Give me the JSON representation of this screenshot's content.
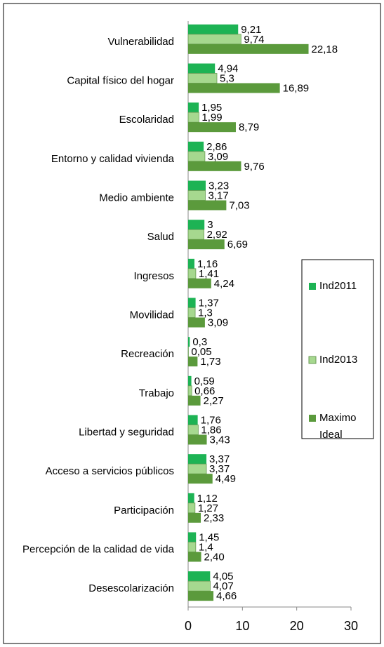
{
  "chart_data": {
    "type": "bar",
    "orientation": "horizontal",
    "categories": [
      "Vulnerabilidad",
      "Capital físico del hogar",
      "Escolaridad",
      "Entorno y calidad vivienda",
      "Medio ambiente",
      "Salud",
      "Ingresos",
      "Movilidad",
      "Recreación",
      "Trabajo",
      "Libertad y seguridad",
      "Acceso a servicios públicos",
      "Participación",
      "Percepción de la calidad de vida",
      "Desescolarización"
    ],
    "series": [
      {
        "name": "Ind2011",
        "color": "#1db354",
        "values": [
          9.21,
          4.94,
          1.95,
          2.86,
          3.23,
          3,
          1.16,
          1.37,
          0.3,
          0.59,
          1.76,
          3.37,
          1.12,
          1.45,
          4.05
        ],
        "value_labels": [
          "9,21",
          "4,94",
          "1,95",
          "2,86",
          "3,23",
          "3",
          "1,16",
          "1,37",
          "0,3",
          "0,59",
          "1,76",
          "3,37",
          "1,12",
          "1,45",
          "4,05"
        ]
      },
      {
        "name": "Ind2013",
        "color": "#a6d88f",
        "values": [
          9.74,
          5.3,
          1.99,
          3.09,
          3.17,
          2.92,
          1.41,
          1.3,
          0.05,
          0.66,
          1.86,
          3.37,
          1.27,
          1.4,
          4.07
        ],
        "value_labels": [
          "9,74",
          "5,3",
          "1,99",
          "3,09",
          "3,17",
          "2,92",
          "1,41",
          "1,3",
          "0,05",
          "0,66",
          "1,86",
          "3,37",
          "1,27",
          "1,4",
          "4,07"
        ]
      },
      {
        "name": "Maximo Ideal",
        "color": "#5b9a3c",
        "values": [
          22.18,
          16.89,
          8.79,
          9.76,
          7.03,
          6.69,
          4.24,
          3.09,
          1.73,
          2.27,
          3.43,
          4.49,
          2.33,
          2.4,
          4.66
        ],
        "value_labels": [
          "22,18",
          "16,89",
          "8,79",
          "9,76",
          "7,03",
          "6,69",
          "4,24",
          "3,09",
          "1,73",
          "2,27",
          "3,43",
          "4,49",
          "2,33",
          "2,40",
          "4,66"
        ]
      }
    ],
    "xlim": [
      0,
      30
    ],
    "xticks": [
      0,
      10,
      20,
      30
    ],
    "legend": "right"
  }
}
